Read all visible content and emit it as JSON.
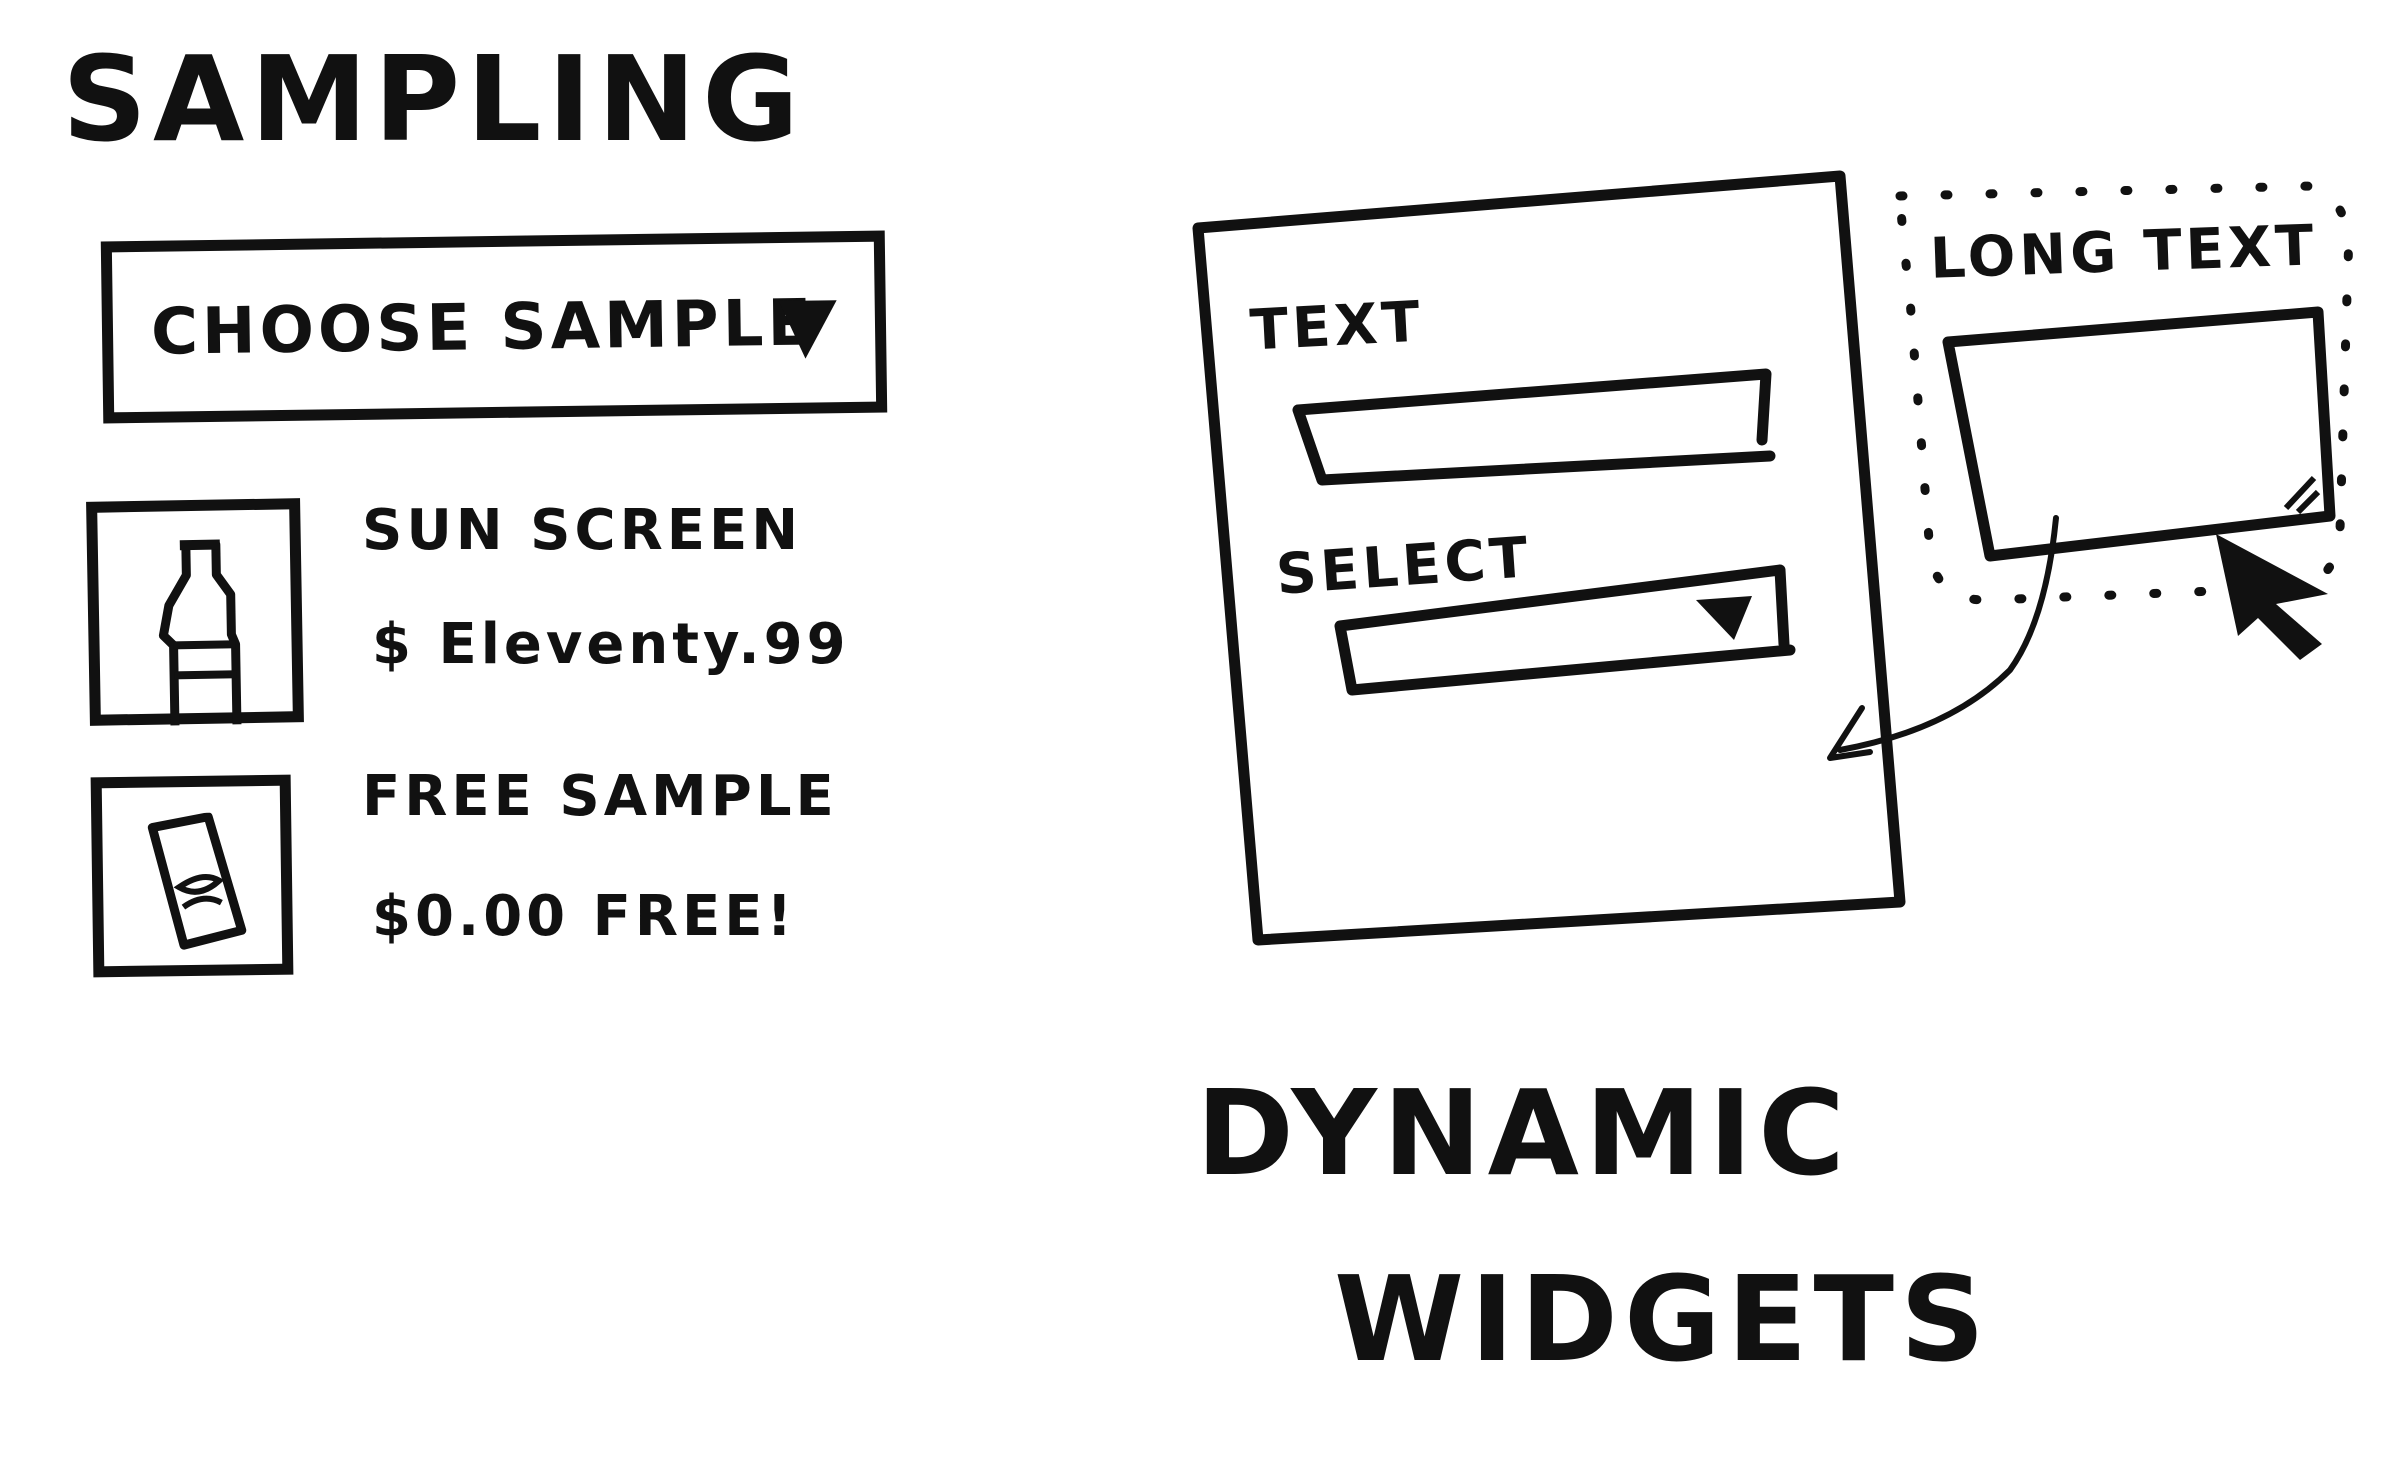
{
  "sampling": {
    "title": "SAMPLING",
    "dropdown": {
      "label": "CHOOSE SAMPLE",
      "icon": "triangle-down-icon"
    },
    "products": [
      {
        "icon": "bottle-icon",
        "name": "SUN SCREEN",
        "price": "$ Eleventy.99"
      },
      {
        "icon": "packet-icon",
        "name": "FREE SAMPLE",
        "price": "$0.00 FREE!"
      }
    ]
  },
  "dynamic_widgets": {
    "title_line1": "DYNAMIC",
    "title_line2": "WIDGETS",
    "form": {
      "text_label": "TEXT",
      "select_label": "SELECT",
      "select_icon": "triangle-down-icon"
    },
    "popout": {
      "label": "LONG TEXT",
      "resize_icon": "resize-handle-icon",
      "cursor_icon": "cursor-arrow-icon"
    }
  },
  "colors": {
    "ink": "#111111",
    "paper": "#ffffff"
  }
}
